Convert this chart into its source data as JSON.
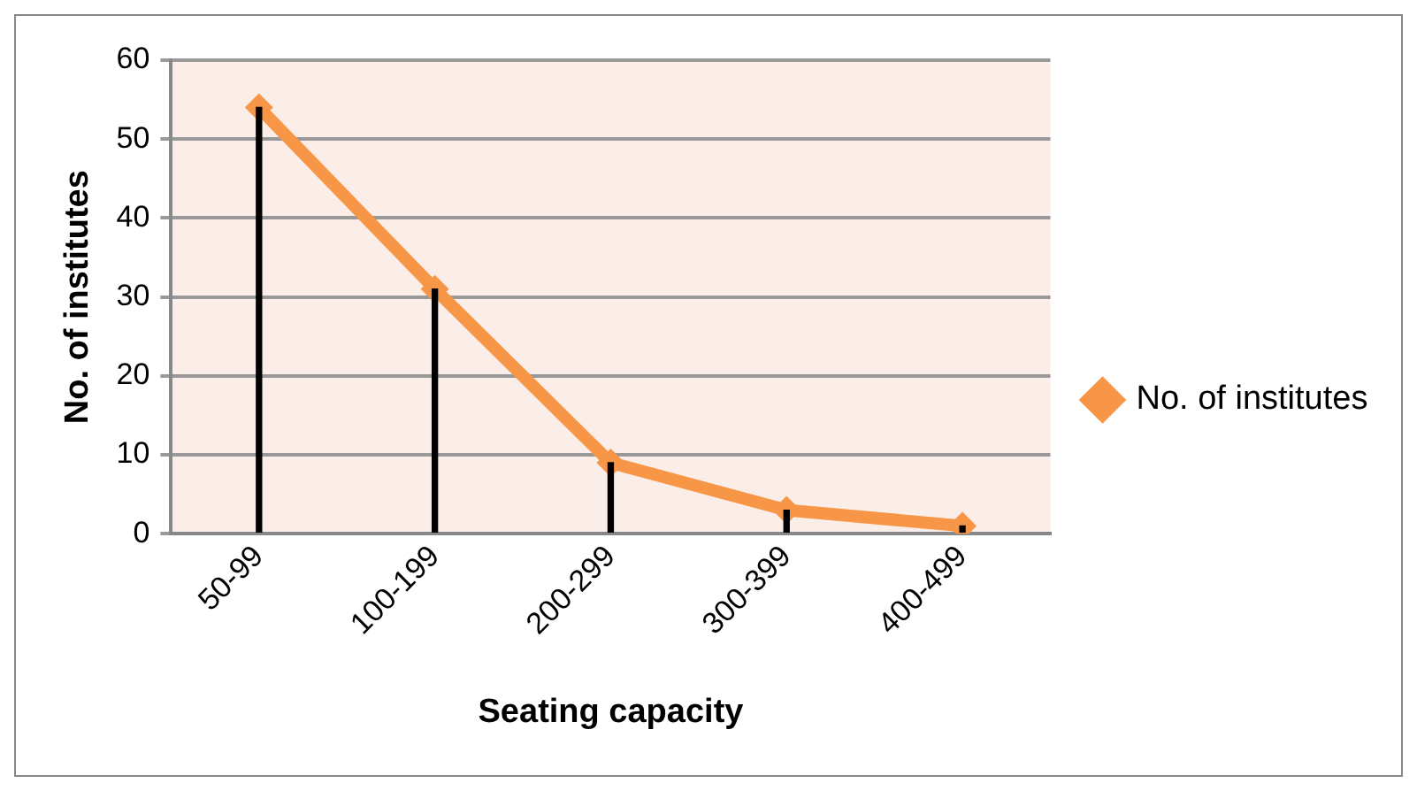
{
  "chart_data": {
    "type": "line",
    "xlabel": "Seating capacity",
    "ylabel": "No. of institutes",
    "categories": [
      "50-99",
      "100-199",
      "200-299",
      "300-399",
      "400-499"
    ],
    "series": [
      {
        "name": "No. of institutes",
        "color": "#f79646",
        "values": [
          54,
          31,
          9,
          3,
          1
        ]
      },
      {
        "type": "bar",
        "color": "#000000",
        "values": [
          54,
          31,
          9,
          3,
          1
        ]
      }
    ],
    "ylim": [
      0,
      60
    ],
    "yticks": [
      0,
      10,
      20,
      30,
      40,
      50,
      60
    ],
    "grid": "y",
    "legend": "right",
    "marker": "diamond",
    "line_style": "solid"
  }
}
